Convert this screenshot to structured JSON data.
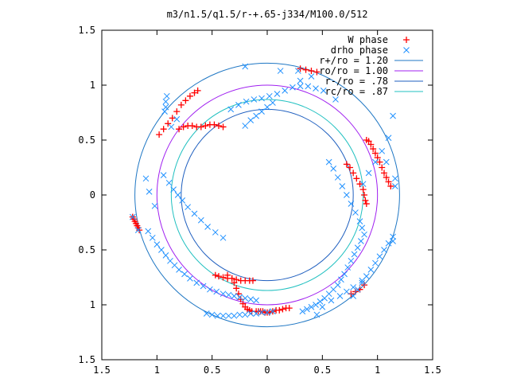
{
  "chart_data": {
    "type": "scatter",
    "title": "m3/n1.5/q1.5/r-+.65-j334/M100.0/512",
    "xlabel": "",
    "ylabel": "",
    "xlim": [
      -1.5,
      1.5
    ],
    "ylim": [
      -1.5,
      1.5
    ],
    "x_ticks": [
      -1.5,
      -1,
      -0.5,
      0,
      0.5,
      1,
      1.5
    ],
    "y_ticks": [
      -1.5,
      -1,
      -0.5,
      0,
      0.5,
      1,
      1.5
    ],
    "x_tick_labels": [
      "1.5",
      "1",
      "0.5",
      "0",
      "0.5",
      "1",
      "1.5"
    ],
    "y_tick_labels": [
      "1.5",
      "1",
      "0.5",
      "0",
      "0.5",
      "1",
      "1.5"
    ],
    "grid": false,
    "legend_position": "top-right",
    "legend": [
      {
        "label": "W phase",
        "marker": "plus",
        "color": "#ff0000"
      },
      {
        "label": "drho phase",
        "marker": "x",
        "color": "#1e90ff"
      },
      {
        "label": "r+/ro = 1.20",
        "marker": "line",
        "color": "#1f77c4"
      },
      {
        "label": "ro/ro = 1.00",
        "marker": "line",
        "color": "#a020f0"
      },
      {
        "label": "r-/ro = .78",
        "marker": "line",
        "color": "#1f5fbf"
      },
      {
        "label": "rc/ro = .87",
        "marker": "line",
        "color": "#20c0c0"
      }
    ],
    "circles": [
      {
        "name": "r+/ro = 1.20",
        "radius": 1.2,
        "color": "#1f77c4"
      },
      {
        "name": "ro/ro = 1.00",
        "radius": 1.0,
        "color": "#a020f0"
      },
      {
        "name": "r-/ro = .78",
        "radius": 0.78,
        "color": "#1f5fbf"
      },
      {
        "name": "rc/ro = .87",
        "radius": 0.87,
        "color": "#20c0c0"
      }
    ],
    "series": [
      {
        "name": "W phase",
        "marker": "plus",
        "color": "#ff0000",
        "x": [
          -1.22,
          -1.21,
          -1.2,
          -1.19,
          -1.18,
          -1.17,
          -1.16,
          -0.98,
          -0.94,
          -0.9,
          -0.86,
          -0.82,
          -0.78,
          -0.74,
          -0.7,
          -0.66,
          -0.63,
          -0.8,
          -0.76,
          -0.72,
          -0.68,
          -0.64,
          -0.6,
          -0.56,
          -0.52,
          -0.48,
          -0.44,
          -0.4,
          -0.36,
          -0.32,
          -0.3,
          -0.28,
          -0.26,
          -0.24,
          -0.22,
          -0.2,
          -0.18,
          -0.16,
          -0.14,
          -0.1,
          -0.08,
          -0.06,
          -0.04,
          -0.02,
          0.0,
          0.02,
          0.05,
          0.08,
          0.11,
          0.14,
          0.17,
          0.2,
          -0.47,
          -0.44,
          -0.4,
          -0.36,
          -0.32,
          -0.28,
          -0.24,
          -0.2,
          -0.16,
          -0.13,
          0.3,
          0.35,
          0.4,
          0.45,
          0.72,
          0.75,
          0.78,
          0.81,
          0.84,
          0.87,
          0.88,
          0.89,
          0.9,
          0.9,
          0.92,
          0.94,
          0.96,
          0.98,
          1.0,
          1.02,
          1.04,
          1.06,
          1.08,
          1.1,
          1.12,
          0.76,
          0.8,
          0.84,
          0.88
        ],
        "y": [
          -0.2,
          -0.22,
          -0.24,
          -0.26,
          -0.28,
          -0.3,
          -0.32,
          0.55,
          0.6,
          0.65,
          0.7,
          0.76,
          0.82,
          0.86,
          0.9,
          0.93,
          0.95,
          0.6,
          0.62,
          0.63,
          0.63,
          0.62,
          0.62,
          0.63,
          0.64,
          0.64,
          0.63,
          0.62,
          -0.73,
          -0.76,
          -0.8,
          -0.85,
          -0.9,
          -0.95,
          -0.99,
          -1.02,
          -1.04,
          -1.05,
          -1.06,
          -1.06,
          -1.06,
          -1.06,
          -1.06,
          -1.07,
          -1.07,
          -1.07,
          -1.06,
          -1.05,
          -1.05,
          -1.04,
          -1.03,
          -1.03,
          -0.73,
          -0.74,
          -0.75,
          -0.76,
          -0.76,
          -0.77,
          -0.78,
          -0.78,
          -0.78,
          -0.78,
          1.15,
          1.14,
          1.13,
          1.12,
          0.28,
          0.25,
          0.2,
          0.15,
          0.1,
          0.05,
          0.0,
          -0.05,
          -0.08,
          0.5,
          0.49,
          0.46,
          0.42,
          0.38,
          0.34,
          0.3,
          0.25,
          0.2,
          0.16,
          0.12,
          0.08,
          -0.9,
          -0.88,
          -0.86,
          -0.82
        ]
      },
      {
        "name": "drho phase",
        "marker": "x",
        "color": "#1e90ff",
        "x": [
          -0.94,
          -0.89,
          -0.85,
          -0.81,
          -0.77,
          -0.72,
          -0.66,
          -0.6,
          -0.54,
          -0.47,
          -0.4,
          -0.33,
          -0.26,
          -0.19,
          -0.12,
          -0.05,
          0.02,
          0.09,
          0.16,
          0.23,
          0.3,
          0.37,
          0.44,
          0.51,
          0.56,
          0.6,
          0.64,
          0.68,
          0.72,
          0.76,
          0.8,
          0.84,
          0.86,
          0.88,
          0.85,
          0.82,
          0.79,
          0.76,
          0.73,
          0.7,
          0.67,
          0.64,
          0.6,
          0.56,
          0.52,
          0.48,
          0.44,
          0.4,
          0.36,
          0.32,
          -1.08,
          -1.04,
          -1.0,
          -0.96,
          -0.92,
          -0.88,
          -0.84,
          -0.8,
          -0.75,
          -0.7,
          -0.64,
          -0.58,
          -0.52,
          -0.46,
          -0.4,
          -0.35,
          -0.3,
          -0.25,
          -0.2,
          -0.15,
          -0.1,
          -0.55,
          -0.5,
          -0.45,
          -0.4,
          -0.35,
          -0.3,
          -0.25,
          -0.2,
          -0.15,
          -0.1,
          -0.05,
          0.0,
          0.05,
          -0.2,
          -0.15,
          -0.1,
          -0.05,
          0.0,
          0.05,
          -1.22,
          -1.17,
          -1.07,
          -1.02,
          -0.93,
          -0.87,
          -0.82,
          0.28,
          0.4,
          0.5,
          0.58,
          0.66,
          0.72,
          0.78,
          0.86,
          1.08,
          1.16,
          1.16,
          1.14,
          -0.2,
          0.12,
          0.3,
          0.45,
          0.62,
          0.87,
          0.92,
          0.98,
          1.04,
          1.1,
          1.14,
          -1.1,
          -0.92,
          -0.92,
          -0.91,
          0.78,
          0.82,
          0.86,
          0.9,
          0.94,
          0.98,
          1.02,
          1.06,
          1.1,
          1.14
        ],
        "y": [
          0.18,
          0.11,
          0.05,
          0.0,
          -0.05,
          -0.11,
          -0.17,
          -0.23,
          -0.29,
          -0.34,
          -0.39,
          0.78,
          0.82,
          0.85,
          0.87,
          0.88,
          0.9,
          0.92,
          0.95,
          0.98,
          0.99,
          0.99,
          0.97,
          0.95,
          0.3,
          0.24,
          0.16,
          0.08,
          0.0,
          -0.08,
          -0.16,
          -0.24,
          -0.3,
          -0.36,
          -0.42,
          -0.48,
          -0.54,
          -0.6,
          -0.66,
          -0.72,
          -0.77,
          -0.82,
          -0.86,
          -0.9,
          -0.94,
          -0.97,
          -1.0,
          -1.02,
          -1.04,
          -1.06,
          -0.33,
          -0.39,
          -0.45,
          -0.5,
          -0.55,
          -0.6,
          -0.64,
          -0.68,
          -0.72,
          -0.76,
          -0.8,
          -0.83,
          -0.86,
          -0.88,
          -0.9,
          -0.91,
          -0.92,
          -0.93,
          -0.94,
          -0.95,
          -0.96,
          -1.08,
          -1.09,
          -1.1,
          -1.1,
          -1.1,
          -1.1,
          -1.09,
          -1.09,
          -1.08,
          -1.08,
          -1.07,
          -1.07,
          -1.06,
          0.63,
          0.68,
          0.72,
          0.76,
          0.8,
          0.84,
          -0.2,
          -0.32,
          0.03,
          -0.1,
          0.76,
          0.62,
          0.69,
          1.13,
          1.08,
          -1.02,
          -0.96,
          -0.92,
          -0.88,
          -0.84,
          -0.78,
          0.3,
          0.15,
          0.08,
          -0.42,
          1.17,
          1.13,
          1.04,
          -1.09,
          0.87,
          0.1,
          0.2,
          0.3,
          0.4,
          0.52,
          0.72,
          0.15,
          0.8,
          0.85,
          0.9,
          -0.92,
          -0.86,
          -0.8,
          -0.74,
          -0.68,
          -0.62,
          -0.56,
          -0.5,
          -0.44,
          -0.38
        ]
      }
    ]
  }
}
